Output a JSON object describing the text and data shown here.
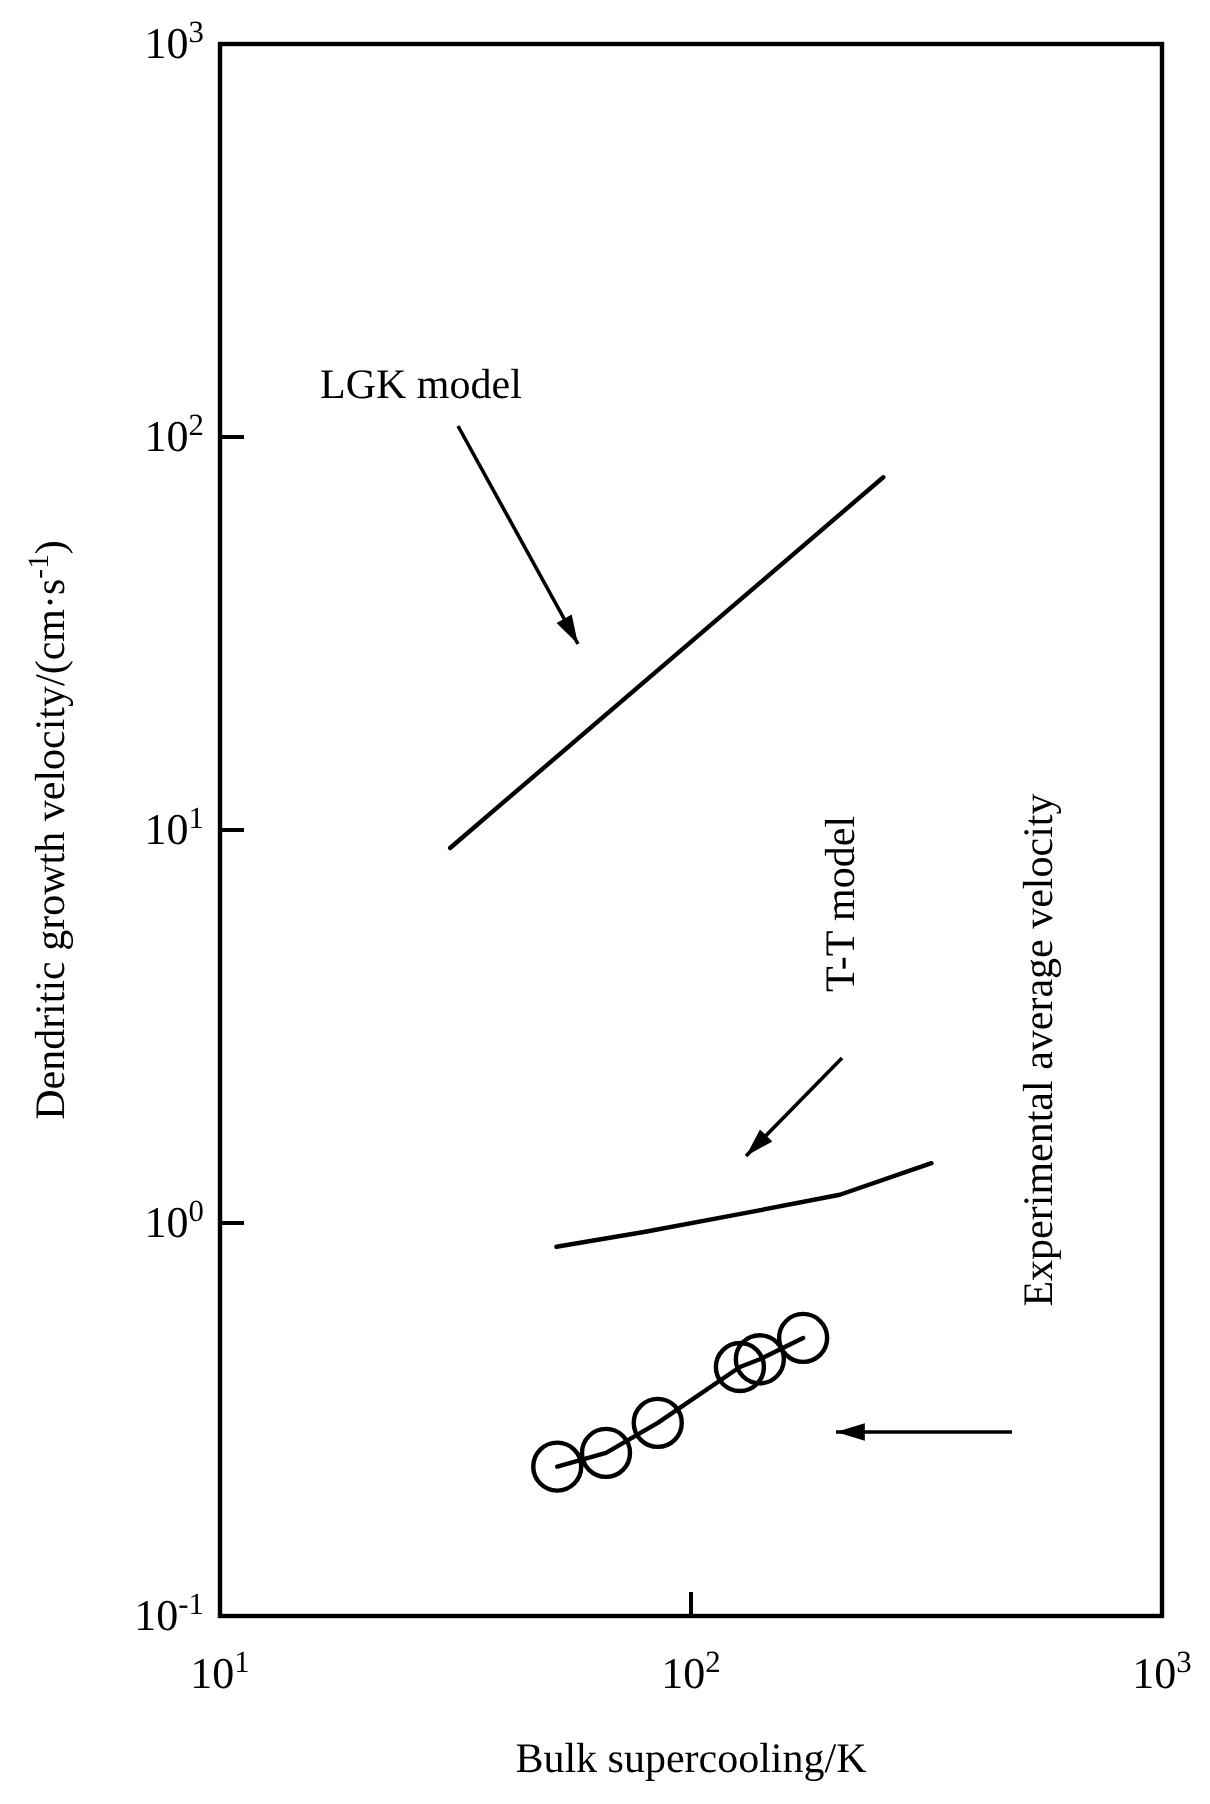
{
  "chart_data": {
    "type": "line",
    "xlabel": "Bulk supercooling/K",
    "ylabel": "Dendritic growth velocity/(cm·s$^{-1}$)",
    "log": "xy",
    "grid": false,
    "xlim": [
      10,
      1000
    ],
    "ylim": [
      0.1,
      1000
    ],
    "xticks": [
      {
        "value": 10,
        "label": "10$^{1}$"
      },
      {
        "value": 100,
        "label": "10$^{2}$"
      },
      {
        "value": 1000,
        "label": "10$^{3}$"
      }
    ],
    "yticks": [
      {
        "value": 0.1,
        "label": "10$^{-1}$"
      },
      {
        "value": 1,
        "label": "10$^{0}$"
      },
      {
        "value": 10,
        "label": "10$^{1}$"
      },
      {
        "value": 100,
        "label": "10$^{2}$"
      },
      {
        "value": 1000,
        "label": "10$^{3}$"
      }
    ],
    "series": [
      {
        "color": "#000000",
        "marker": "none",
        "x": [
          30.8,
          256
        ],
        "values": [
          9.0,
          79
        ]
      },
      {
        "color": "#000000",
        "marker": "none",
        "x": [
          51.8,
          80,
          125,
          207,
          324
        ],
        "values": [
          0.87,
          0.95,
          1.05,
          1.18,
          1.42
        ]
      },
      {
        "color": "#000000",
        "marker": "circle",
        "x": [
          52,
          66,
          85,
          127,
          140,
          173
        ],
        "values": [
          0.24,
          0.26,
          0.31,
          0.43,
          0.45,
          0.51
        ]
      }
    ],
    "annotations": [
      "LGK model",
      "T-T model",
      "Experimental average velocity"
    ]
  }
}
